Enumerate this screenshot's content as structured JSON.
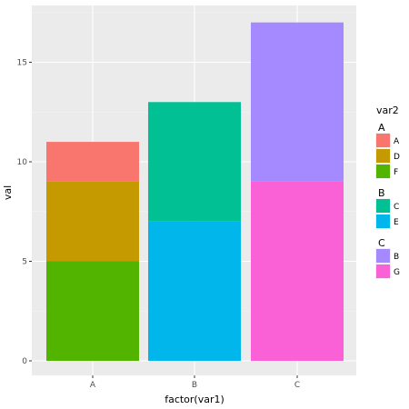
{
  "chart_data": {
    "type": "bar",
    "stacked": true,
    "xlabel": "factor(var1)",
    "ylabel": "val",
    "categories": [
      "A",
      "B",
      "C"
    ],
    "ylim": [
      0,
      17.8
    ],
    "y_ticks": [
      0,
      5,
      10,
      15
    ],
    "grid": true,
    "legend_position": "right",
    "legend": {
      "title": "var2",
      "groups": [
        {
          "title": "A",
          "items": [
            {
              "label": "A",
              "color": "#F8766D"
            },
            {
              "label": "D",
              "color": "#C49A00"
            },
            {
              "label": "F",
              "color": "#53B400"
            }
          ]
        },
        {
          "title": "B",
          "items": [
            {
              "label": "C",
              "color": "#00C094"
            },
            {
              "label": "E",
              "color": "#00B6EB"
            }
          ]
        },
        {
          "title": "C",
          "items": [
            {
              "label": "B",
              "color": "#A58AFF"
            },
            {
              "label": "G",
              "color": "#FB61D7"
            }
          ]
        }
      ]
    },
    "bars": [
      {
        "category": "A",
        "segments": [
          {
            "series": "F",
            "value": 5,
            "color": "#53B400"
          },
          {
            "series": "D",
            "value": 4,
            "color": "#C49A00"
          },
          {
            "series": "A",
            "value": 2,
            "color": "#F8766D"
          }
        ]
      },
      {
        "category": "B",
        "segments": [
          {
            "series": "E",
            "value": 7,
            "color": "#00B6EB"
          },
          {
            "series": "C",
            "value": 6,
            "color": "#00C094"
          }
        ]
      },
      {
        "category": "C",
        "segments": [
          {
            "series": "G",
            "value": 9,
            "color": "#FB61D7"
          },
          {
            "series": "B",
            "value": 8,
            "color": "#A58AFF"
          }
        ]
      }
    ],
    "colors": {
      "panel_background": "#EBEBEB",
      "grid_major": "#FFFFFF",
      "grid_minor": "#F4F4F4"
    }
  }
}
